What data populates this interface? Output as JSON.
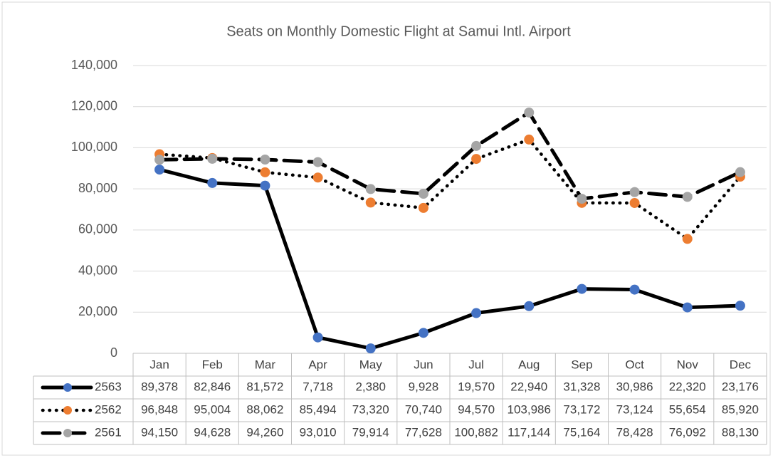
{
  "chart_data": {
    "type": "line",
    "title": "Seats on Monthly Domestic Flight at Samui Intl.  Airport",
    "categories": [
      "Jan",
      "Feb",
      "Mar",
      "Apr",
      "May",
      "Jun",
      "Jul",
      "Aug",
      "Sep",
      "Oct",
      "Nov",
      "Dec"
    ],
    "ylim": [
      0,
      140000
    ],
    "yticks": [
      0,
      {
        "value": 20000,
        "label": "20,000"
      },
      {
        "value": 40000,
        "label": "40,000"
      },
      {
        "value": 60000,
        "label": "60,000"
      },
      {
        "value": 80000,
        "label": "80,000"
      },
      {
        "value": 100000,
        "label": "100,000"
      },
      {
        "value": 120000,
        "label": "120,000"
      },
      {
        "value": 140000,
        "label": "140,000"
      }
    ],
    "grid": true,
    "line_color": "#000000",
    "series": [
      {
        "name": "2563",
        "color": "#4472c4",
        "line_style": "solid",
        "values": [
          89378,
          82846,
          81572,
          7718,
          2380,
          9928,
          19570,
          22940,
          31328,
          30986,
          22320,
          23176
        ],
        "value_labels": [
          "89,378",
          "82,846",
          "81,572",
          "7,718",
          "2,380",
          "9,928",
          "19,570",
          "22,940",
          "31,328",
          "30,986",
          "22,320",
          "23,176"
        ]
      },
      {
        "name": "2562",
        "color": "#ed7d31",
        "line_style": "dotted",
        "values": [
          96848,
          95004,
          88062,
          85494,
          73320,
          70740,
          94570,
          103986,
          73172,
          73124,
          55654,
          85920
        ],
        "value_labels": [
          "96,848",
          "95,004",
          "88,062",
          "85,494",
          "73,320",
          "70,740",
          "94,570",
          "103,986",
          "73,172",
          "73,124",
          "55,654",
          "85,920"
        ]
      },
      {
        "name": "2561",
        "color": "#a5a5a5",
        "line_style": "dashed",
        "values": [
          94150,
          94628,
          94260,
          93010,
          79914,
          77628,
          100882,
          117144,
          75164,
          78428,
          76092,
          88130
        ],
        "value_labels": [
          "94,150",
          "94,628",
          "94,260",
          "93,010",
          "79,914",
          "77,628",
          "100,882",
          "117,144",
          "75,164",
          "78,428",
          "76,092",
          "88,130"
        ]
      }
    ]
  }
}
